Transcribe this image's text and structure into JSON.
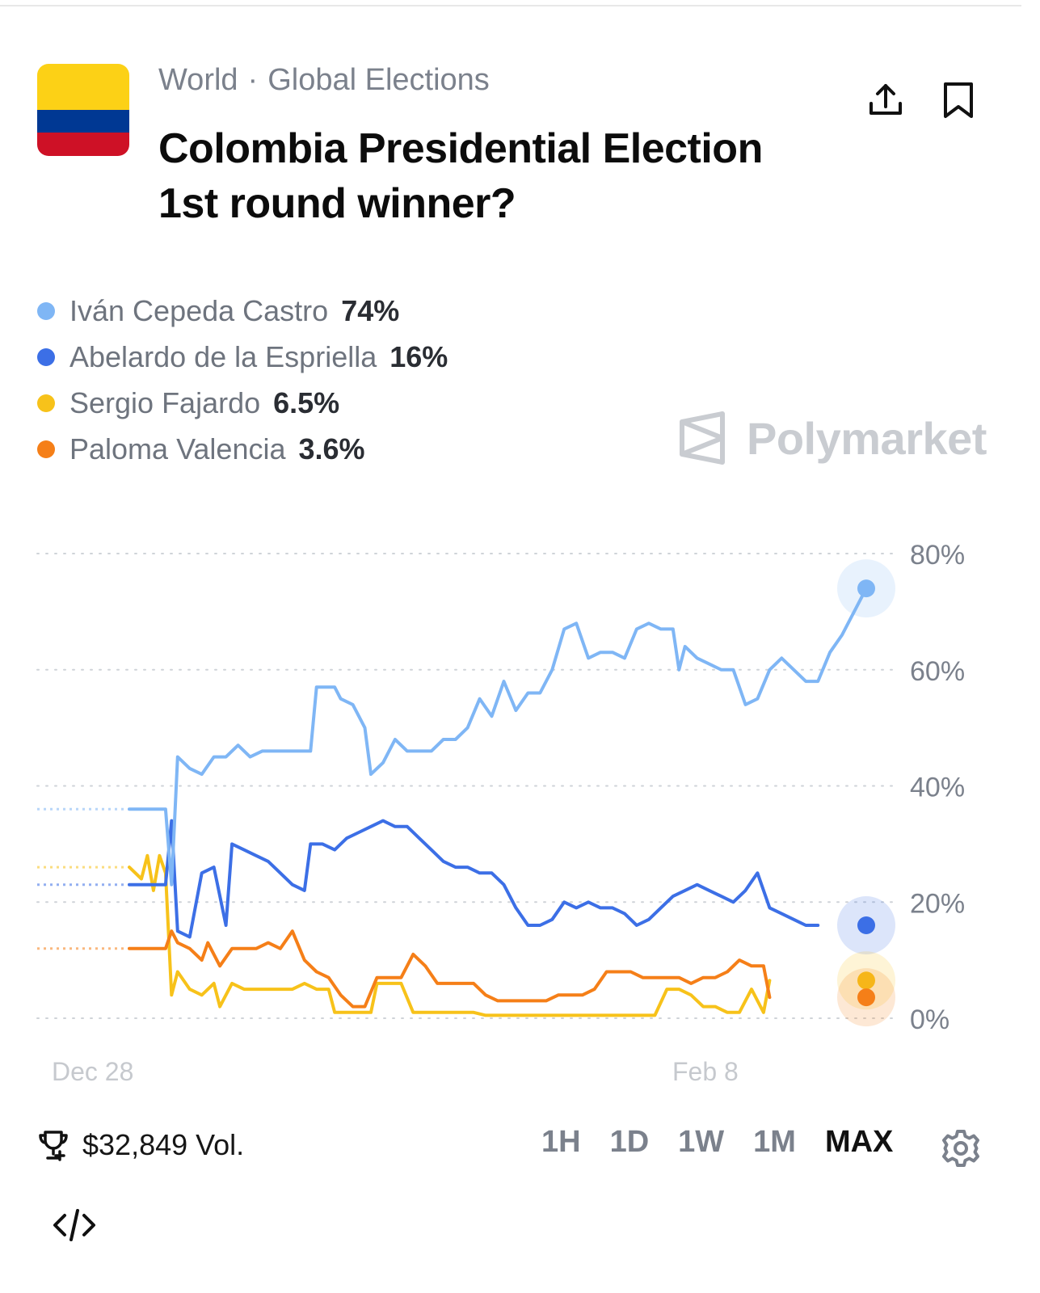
{
  "header": {
    "breadcrumb": [
      "World",
      "Global Elections"
    ],
    "breadcrumb_separator": "·",
    "title_line1": "Colombia Presidential Election",
    "title_line2": "1st round winner?",
    "flag_colors": [
      "#FCD116",
      "#003893",
      "#CE1126"
    ],
    "actions": [
      {
        "icon": "share-icon"
      },
      {
        "icon": "bookmark-icon"
      }
    ]
  },
  "brand": {
    "name": "Polymarket",
    "icon": "polymarket-logo-icon"
  },
  "legend": [
    {
      "name": "Iván Cepeda Castro",
      "pct": "74%",
      "color": "#7fb6f5"
    },
    {
      "name": "Abelardo de la Espriella",
      "pct": "16%",
      "color": "#3c6fe6"
    },
    {
      "name": "Sergio Fajardo",
      "pct": "6.5%",
      "color": "#f7c21a"
    },
    {
      "name": "Paloma Valencia",
      "pct": "3.6%",
      "color": "#f57f18"
    }
  ],
  "chart_data": {
    "type": "line",
    "ylim": [
      0,
      80
    ],
    "yticks": [
      "80%",
      "60%",
      "40%",
      "20%",
      "0%"
    ],
    "ytick_values": [
      80,
      60,
      40,
      20,
      0
    ],
    "xticks": [
      "Dec 28",
      "Feb 8"
    ],
    "grid": true,
    "series": [
      {
        "name": "Iván Cepeda Castro",
        "color": "#7fb6f5",
        "final": 74,
        "points": [
          [
            0,
            36
          ],
          [
            6,
            36
          ],
          [
            7,
            23
          ],
          [
            8,
            45
          ],
          [
            10,
            43
          ],
          [
            12,
            42
          ],
          [
            14,
            45
          ],
          [
            16,
            45
          ],
          [
            18,
            47
          ],
          [
            20,
            45
          ],
          [
            22,
            46
          ],
          [
            26,
            46
          ],
          [
            28,
            46
          ],
          [
            30,
            46
          ],
          [
            31,
            57
          ],
          [
            34,
            57
          ],
          [
            35,
            55
          ],
          [
            37,
            54
          ],
          [
            38,
            52
          ],
          [
            39,
            50
          ],
          [
            40,
            42
          ],
          [
            42,
            44
          ],
          [
            44,
            48
          ],
          [
            46,
            46
          ],
          [
            48,
            46
          ],
          [
            50,
            46
          ],
          [
            52,
            48
          ],
          [
            54,
            48
          ],
          [
            56,
            50
          ],
          [
            58,
            55
          ],
          [
            60,
            52
          ],
          [
            62,
            58
          ],
          [
            64,
            53
          ],
          [
            66,
            56
          ],
          [
            68,
            56
          ],
          [
            70,
            60
          ],
          [
            72,
            67
          ],
          [
            74,
            68
          ],
          [
            76,
            62
          ],
          [
            78,
            63
          ],
          [
            80,
            63
          ],
          [
            82,
            62
          ],
          [
            84,
            67
          ],
          [
            86,
            68
          ],
          [
            88,
            67
          ],
          [
            90,
            67
          ],
          [
            91,
            60
          ],
          [
            92,
            64
          ],
          [
            94,
            62
          ],
          [
            96,
            61
          ],
          [
            98,
            60
          ],
          [
            100,
            60
          ],
          [
            102,
            54
          ],
          [
            104,
            55
          ],
          [
            106,
            60
          ],
          [
            108,
            62
          ],
          [
            110,
            60
          ],
          [
            112,
            58
          ],
          [
            114,
            58
          ],
          [
            116,
            63
          ],
          [
            118,
            66
          ],
          [
            120,
            70
          ],
          [
            122,
            74
          ]
        ]
      },
      {
        "name": "Abelardo de la Espriella",
        "color": "#3c6fe6",
        "final": 16,
        "points": [
          [
            0,
            23
          ],
          [
            6,
            23
          ],
          [
            7,
            34
          ],
          [
            8,
            15
          ],
          [
            10,
            14
          ],
          [
            12,
            25
          ],
          [
            14,
            26
          ],
          [
            16,
            16
          ],
          [
            17,
            30
          ],
          [
            19,
            29
          ],
          [
            21,
            28
          ],
          [
            23,
            27
          ],
          [
            25,
            25
          ],
          [
            27,
            23
          ],
          [
            29,
            22
          ],
          [
            30,
            30
          ],
          [
            32,
            30
          ],
          [
            34,
            29
          ],
          [
            36,
            31
          ],
          [
            38,
            32
          ],
          [
            40,
            33
          ],
          [
            42,
            34
          ],
          [
            44,
            33
          ],
          [
            46,
            33
          ],
          [
            48,
            31
          ],
          [
            50,
            29
          ],
          [
            52,
            27
          ],
          [
            54,
            26
          ],
          [
            56,
            26
          ],
          [
            58,
            25
          ],
          [
            60,
            25
          ],
          [
            62,
            23
          ],
          [
            64,
            19
          ],
          [
            66,
            16
          ],
          [
            68,
            16
          ],
          [
            70,
            17
          ],
          [
            72,
            20
          ],
          [
            74,
            19
          ],
          [
            76,
            20
          ],
          [
            78,
            19
          ],
          [
            80,
            19
          ],
          [
            82,
            18
          ],
          [
            84,
            16
          ],
          [
            86,
            17
          ],
          [
            88,
            19
          ],
          [
            90,
            21
          ],
          [
            92,
            22
          ],
          [
            94,
            23
          ],
          [
            96,
            22
          ],
          [
            98,
            21
          ],
          [
            100,
            20
          ],
          [
            102,
            22
          ],
          [
            104,
            25
          ],
          [
            106,
            19
          ],
          [
            108,
            18
          ],
          [
            110,
            17
          ],
          [
            112,
            16
          ],
          [
            114,
            16
          ]
        ]
      },
      {
        "name": "Sergio Fajardo",
        "color": "#f7c21a",
        "final": 6.5,
        "points": [
          [
            0,
            26
          ],
          [
            2,
            24
          ],
          [
            3,
            28
          ],
          [
            4,
            22
          ],
          [
            5,
            28
          ],
          [
            6,
            25
          ],
          [
            7,
            4
          ],
          [
            8,
            8
          ],
          [
            10,
            5
          ],
          [
            12,
            4
          ],
          [
            14,
            6
          ],
          [
            15,
            2
          ],
          [
            17,
            6
          ],
          [
            19,
            5
          ],
          [
            21,
            5
          ],
          [
            23,
            5
          ],
          [
            25,
            5
          ],
          [
            27,
            5
          ],
          [
            29,
            6
          ],
          [
            31,
            5
          ],
          [
            33,
            5
          ],
          [
            34,
            1
          ],
          [
            36,
            1
          ],
          [
            38,
            1
          ],
          [
            40,
            1
          ],
          [
            41,
            6
          ],
          [
            43,
            6
          ],
          [
            45,
            6
          ],
          [
            47,
            1
          ],
          [
            49,
            1
          ],
          [
            51,
            1
          ],
          [
            53,
            1
          ],
          [
            55,
            1
          ],
          [
            57,
            1
          ],
          [
            59,
            0.5
          ],
          [
            61,
            0.5
          ],
          [
            63,
            0.5
          ],
          [
            65,
            0.5
          ],
          [
            67,
            0.5
          ],
          [
            69,
            0.5
          ],
          [
            71,
            0.5
          ],
          [
            73,
            0.5
          ],
          [
            75,
            0.5
          ],
          [
            77,
            0.5
          ],
          [
            79,
            0.5
          ],
          [
            81,
            0.5
          ],
          [
            83,
            0.5
          ],
          [
            85,
            0.5
          ],
          [
            87,
            0.5
          ],
          [
            89,
            5
          ],
          [
            91,
            5
          ],
          [
            93,
            4
          ],
          [
            95,
            2
          ],
          [
            97,
            2
          ],
          [
            99,
            1
          ],
          [
            101,
            1
          ],
          [
            103,
            5
          ],
          [
            105,
            1
          ],
          [
            106,
            6.5
          ]
        ]
      },
      {
        "name": "Paloma Valencia",
        "color": "#f57f18",
        "final": 3.6,
        "points": [
          [
            0,
            12
          ],
          [
            6,
            12
          ],
          [
            7,
            15
          ],
          [
            8,
            13
          ],
          [
            10,
            12
          ],
          [
            12,
            10
          ],
          [
            13,
            13
          ],
          [
            15,
            9
          ],
          [
            17,
            12
          ],
          [
            19,
            12
          ],
          [
            21,
            12
          ],
          [
            23,
            13
          ],
          [
            25,
            12
          ],
          [
            27,
            15
          ],
          [
            29,
            10
          ],
          [
            31,
            8
          ],
          [
            33,
            7
          ],
          [
            35,
            4
          ],
          [
            37,
            2
          ],
          [
            39,
            2
          ],
          [
            41,
            7
          ],
          [
            43,
            7
          ],
          [
            45,
            7
          ],
          [
            47,
            11
          ],
          [
            49,
            9
          ],
          [
            51,
            6
          ],
          [
            53,
            6
          ],
          [
            55,
            6
          ],
          [
            57,
            6
          ],
          [
            59,
            4
          ],
          [
            61,
            3
          ],
          [
            63,
            3
          ],
          [
            65,
            3
          ],
          [
            67,
            3
          ],
          [
            69,
            3
          ],
          [
            71,
            4
          ],
          [
            73,
            4
          ],
          [
            75,
            4
          ],
          [
            77,
            5
          ],
          [
            79,
            8
          ],
          [
            81,
            8
          ],
          [
            83,
            8
          ],
          [
            85,
            7
          ],
          [
            87,
            7
          ],
          [
            89,
            7
          ],
          [
            91,
            7
          ],
          [
            93,
            6
          ],
          [
            95,
            7
          ],
          [
            97,
            7
          ],
          [
            99,
            8
          ],
          [
            101,
            10
          ],
          [
            103,
            9
          ],
          [
            105,
            9
          ],
          [
            106,
            3.6
          ]
        ]
      }
    ]
  },
  "footer": {
    "volume": "$32,849 Vol.",
    "volume_icon": "trophy-icon",
    "ranges": [
      "1H",
      "1D",
      "1W",
      "1M",
      "MAX"
    ],
    "active_range": "MAX",
    "settings_icon": "gear-icon",
    "embed_icon": "code-embed-icon"
  }
}
